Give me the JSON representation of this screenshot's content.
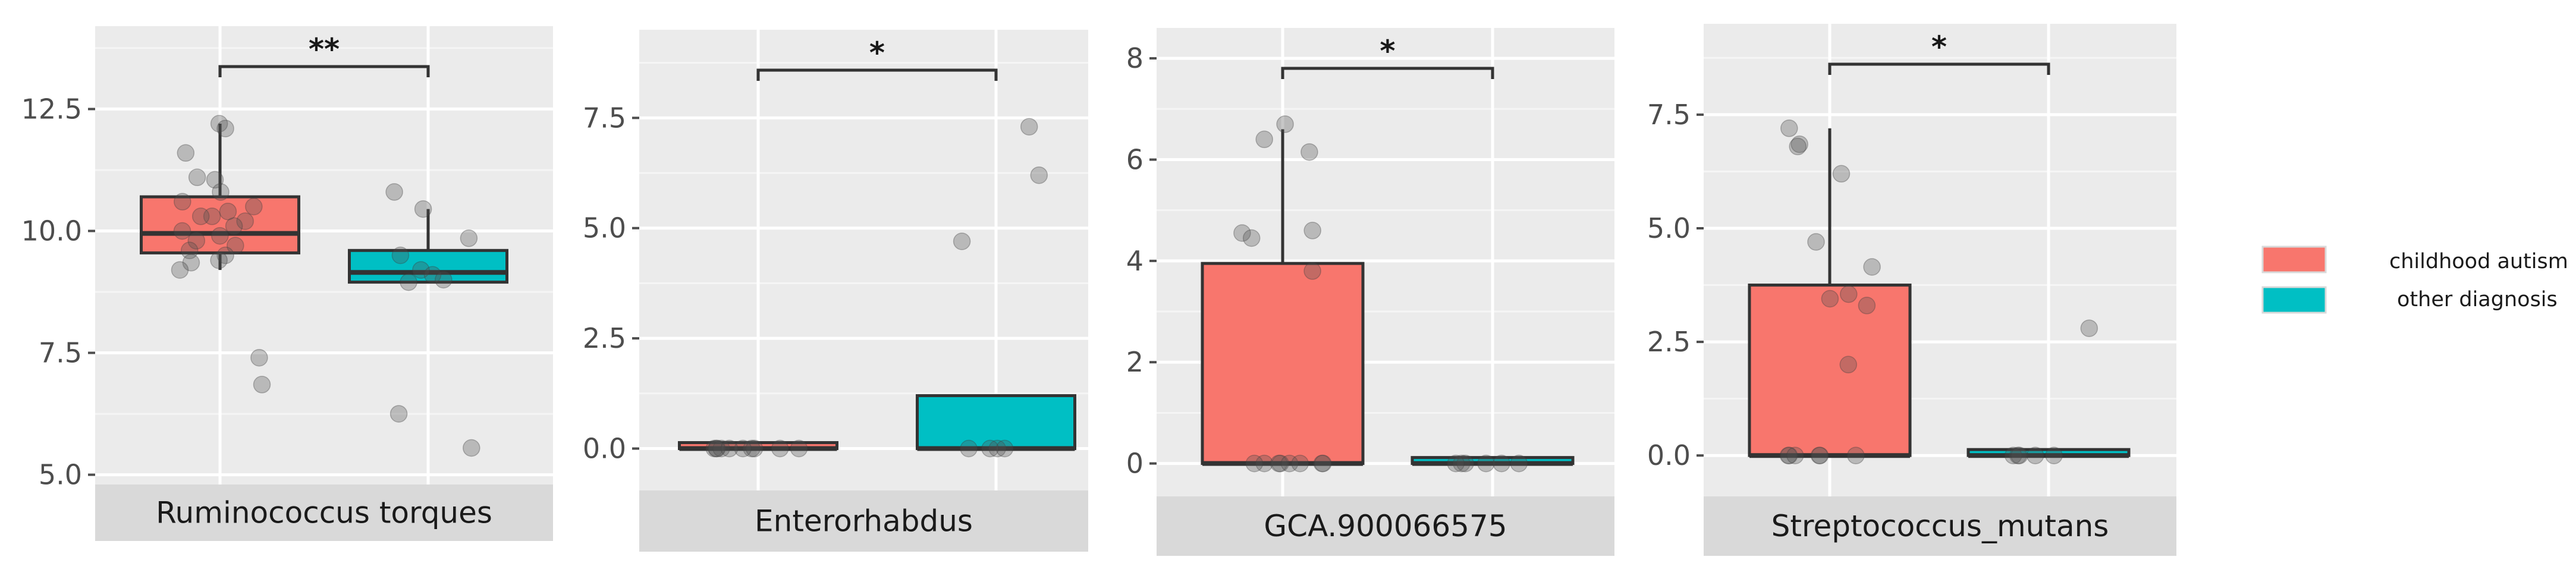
{
  "chart_data": [
    {
      "type": "box",
      "facet": "Ruminococcus torques",
      "ylim": [
        4.8,
        14.2
      ],
      "yticks": [
        5.0,
        7.5,
        10.0,
        12.5
      ],
      "ytick_labels": [
        "5.0",
        "7.5",
        "10.0",
        "12.5"
      ],
      "significance": "**",
      "groups": [
        {
          "name": "childhood autism",
          "color": "#F8766D",
          "box": {
            "q1": 9.55,
            "median": 9.95,
            "q3": 10.7,
            "whisker_low": 9.2,
            "whisker_high": 12.2
          },
          "points": [
            12.2,
            12.1,
            11.6,
            11.1,
            11.05,
            10.8,
            10.6,
            10.5,
            10.4,
            10.3,
            10.3,
            10.2,
            10.1,
            10.0,
            9.9,
            9.8,
            9.7,
            9.6,
            9.5,
            9.4,
            9.35,
            9.2,
            7.4,
            6.85
          ]
        },
        {
          "name": "other diagnosis",
          "color": "#00BFC4",
          "box": {
            "q1": 8.95,
            "median": 9.15,
            "q3": 9.6,
            "whisker_low": 8.95,
            "whisker_high": 10.45
          },
          "points": [
            10.8,
            10.45,
            9.85,
            9.5,
            9.2,
            9.1,
            9.0,
            8.95,
            6.25,
            5.55
          ]
        }
      ]
    },
    {
      "type": "box",
      "facet": "Enterorhabdus",
      "ylim": [
        -0.95,
        9.5
      ],
      "yticks": [
        0.0,
        2.5,
        5.0,
        7.5
      ],
      "ytick_labels": [
        "0.0",
        "2.5",
        "5.0",
        "7.5"
      ],
      "significance": "*",
      "groups": [
        {
          "name": "childhood autism",
          "color": "#F8766D",
          "box": {
            "q1": 0.0,
            "median": 0.0,
            "q3": 0.0,
            "whisker_low": 0.0,
            "whisker_high": 0.0
          },
          "points": [
            0,
            0,
            0,
            0,
            0,
            0,
            0,
            0,
            0,
            0
          ]
        },
        {
          "name": "other diagnosis",
          "color": "#00BFC4",
          "box": {
            "q1": 0.0,
            "median": 0.0,
            "q3": 1.2,
            "whisker_low": 0.0,
            "whisker_high": 1.2
          },
          "points": [
            7.3,
            6.2,
            4.7,
            0,
            0,
            0,
            0
          ]
        }
      ]
    },
    {
      "type": "box",
      "facet": "GCA.900066575",
      "ylim": [
        -0.65,
        8.6
      ],
      "yticks": [
        0,
        2,
        4,
        6,
        8
      ],
      "ytick_labels": [
        "0",
        "2",
        "4",
        "6",
        "8"
      ],
      "significance": "*",
      "groups": [
        {
          "name": "childhood autism",
          "color": "#F8766D",
          "box": {
            "q1": 0.0,
            "median": 0.0,
            "q3": 3.95,
            "whisker_low": 0.0,
            "whisker_high": 6.6
          },
          "points": [
            6.7,
            6.4,
            6.15,
            4.6,
            4.55,
            4.45,
            3.8,
            0,
            0,
            0,
            0,
            0,
            0,
            0,
            0
          ]
        },
        {
          "name": "other diagnosis",
          "color": "#00BFC4",
          "box": {
            "q1": 0.0,
            "median": 0.0,
            "q3": 0.0,
            "whisker_low": 0.0,
            "whisker_high": 0.0
          },
          "points": [
            0,
            0,
            0,
            0,
            0,
            0
          ]
        }
      ]
    },
    {
      "type": "box",
      "facet": "Streptococcus_mutans",
      "ylim": [
        -0.9,
        9.5
      ],
      "yticks": [
        0.0,
        2.5,
        5.0,
        7.5
      ],
      "ytick_labels": [
        "0.0",
        "2.5",
        "5.0",
        "7.5"
      ],
      "significance": "*",
      "groups": [
        {
          "name": "childhood autism",
          "color": "#F8766D",
          "box": {
            "q1": 0.0,
            "median": 0.0,
            "q3": 3.75,
            "whisker_low": 0.0,
            "whisker_high": 7.2
          },
          "points": [
            7.2,
            6.85,
            6.8,
            6.2,
            4.7,
            4.15,
            3.55,
            3.45,
            3.3,
            2.0,
            0,
            0,
            0,
            0,
            0,
            0
          ]
        },
        {
          "name": "other diagnosis",
          "color": "#00BFC4",
          "box": {
            "q1": 0.0,
            "median": 0.0,
            "q3": 0.0,
            "whisker_low": 0.0,
            "whisker_high": 0.0
          },
          "points": [
            2.8,
            0,
            0,
            0,
            0,
            0
          ]
        }
      ]
    }
  ],
  "legend": {
    "position": "right",
    "items": [
      {
        "label": "childhood autism",
        "color": "#F8766D"
      },
      {
        "label": "other diagnosis",
        "color": "#00BFC4"
      }
    ]
  }
}
